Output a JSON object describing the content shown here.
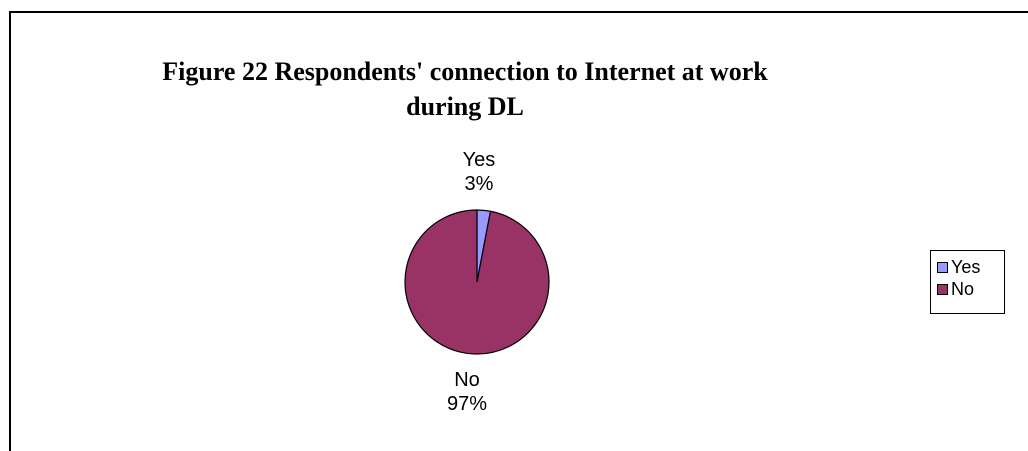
{
  "chart_data": {
    "type": "pie",
    "title": "Figure 22 Respondents' connection to  Internet at work during DL",
    "categories": [
      "Yes",
      "No"
    ],
    "values": [
      3,
      97
    ],
    "percent_labels": [
      "3%",
      "97%"
    ],
    "colors": [
      "#9999ff",
      "#993366"
    ],
    "legend": {
      "position": "right",
      "entries": [
        "Yes",
        "No"
      ]
    }
  }
}
